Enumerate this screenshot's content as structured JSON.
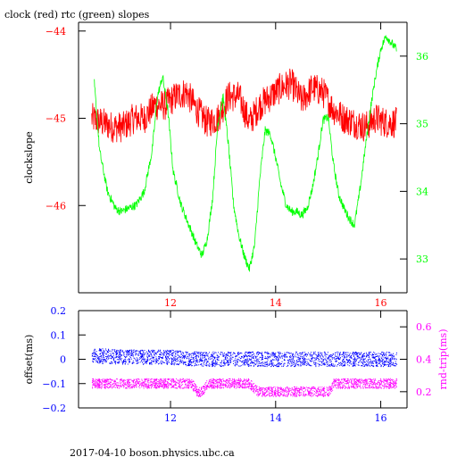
{
  "title": "clock (red) rtc (green) slopes",
  "footer": "2017-04-10  boson.physics.ubc.ca",
  "colors": {
    "clock": "#ff0000",
    "rtc": "#00ff00",
    "offset": "#0000ff",
    "rndtrip": "#ff00ff",
    "axis": "#000000",
    "background": "#ffffff"
  },
  "chart_data": [
    {
      "type": "line",
      "title": "clock (red) rtc (green) slopes",
      "ylabel": "clockslope",
      "y2label": "",
      "xlabel": "",
      "xlim": [
        10.25,
        16.5
      ],
      "ylim": [
        -47.0,
        -43.9
      ],
      "y2lim": [
        32.5,
        36.5
      ],
      "x_ticks": [
        "12",
        "14",
        "16"
      ],
      "y_ticks": [
        "-44",
        "-45",
        "-46"
      ],
      "y2_ticks": [
        "36",
        "35",
        "34",
        "33"
      ],
      "grid": false,
      "series": [
        {
          "name": "clock",
          "color": "#ff0000",
          "axis": "left",
          "x": [
            10.5,
            10.7,
            10.9,
            11.1,
            11.3,
            11.5,
            11.7,
            11.9,
            12.1,
            12.3,
            12.5,
            12.7,
            12.9,
            13.1,
            13.3,
            13.5,
            13.7,
            13.9,
            14.1,
            14.3,
            14.5,
            14.7,
            14.9,
            15.1,
            15.3,
            15.5,
            15.7,
            15.9,
            16.1,
            16.3
          ],
          "y": [
            -45.0,
            -45.05,
            -45.1,
            -45.1,
            -45.0,
            -45.0,
            -44.85,
            -44.85,
            -44.75,
            -44.7,
            -44.9,
            -45.05,
            -45.0,
            -44.75,
            -44.75,
            -45.05,
            -44.85,
            -44.75,
            -44.65,
            -44.6,
            -44.8,
            -44.65,
            -44.7,
            -44.9,
            -45.0,
            -45.05,
            -45.1,
            -45.0,
            -45.05,
            -45.05
          ],
          "noise": 0.18
        },
        {
          "name": "rtc",
          "color": "#00ff00",
          "axis": "right",
          "x": [
            10.55,
            10.65,
            10.8,
            10.95,
            11.05,
            11.2,
            11.35,
            11.5,
            11.65,
            11.75,
            11.85,
            11.95,
            12.05,
            12.2,
            12.35,
            12.5,
            12.6,
            12.7,
            12.8,
            12.9,
            13.0,
            13.1,
            13.2,
            13.3,
            13.4,
            13.5,
            13.6,
            13.7,
            13.8,
            13.9,
            14.0,
            14.1,
            14.2,
            14.3,
            14.4,
            14.5,
            14.6,
            14.7,
            14.8,
            14.9,
            15.0,
            15.1,
            15.2,
            15.3,
            15.4,
            15.5,
            15.6,
            15.7,
            15.8,
            15.9,
            16.0,
            16.1,
            16.2,
            16.3
          ],
          "y": [
            35.6,
            34.6,
            34.0,
            33.75,
            33.7,
            33.75,
            33.8,
            34.0,
            34.6,
            35.4,
            35.7,
            35.2,
            34.3,
            33.8,
            33.5,
            33.2,
            33.05,
            33.3,
            33.9,
            35.0,
            35.4,
            34.7,
            33.8,
            33.35,
            33.05,
            32.85,
            33.2,
            34.2,
            34.9,
            34.85,
            34.5,
            34.1,
            33.8,
            33.7,
            33.7,
            33.65,
            33.75,
            34.05,
            34.5,
            35.05,
            35.1,
            34.4,
            33.95,
            33.75,
            33.6,
            33.5,
            34.0,
            34.6,
            35.2,
            35.7,
            36.1,
            36.3,
            36.2,
            36.1
          ],
          "noise": 0.05
        }
      ]
    },
    {
      "type": "scatter",
      "title": "",
      "ylabel": "offset(ms)",
      "y2label": "rnd-trip(ms)",
      "xlabel": "",
      "xlim": [
        10.25,
        16.5
      ],
      "ylim": [
        -0.2,
        0.2
      ],
      "y2lim": [
        0.1,
        0.7
      ],
      "x_ticks": [
        "12",
        "14",
        "16"
      ],
      "y_ticks": [
        "0.2",
        "0.1",
        "0",
        "-0.1",
        "-0.2"
      ],
      "y2_ticks": [
        "0.6",
        "0.4",
        "0.2"
      ],
      "grid": false,
      "series": [
        {
          "name": "offset",
          "color": "#0000ff",
          "axis": "left",
          "x": [
            10.5,
            11.0,
            11.5,
            12.0,
            12.5,
            13.0,
            13.5,
            14.0,
            14.5,
            15.0,
            15.5,
            16.0,
            16.3
          ],
          "y": [
            0.015,
            0.01,
            0.008,
            0.008,
            0.0,
            0.0,
            0.0,
            0.0,
            0.0,
            0.0,
            0.0,
            0.0,
            0.0
          ],
          "spread": 0.03
        },
        {
          "name": "rnd-trip",
          "color": "#ff00ff",
          "axis": "right",
          "x": [
            10.5,
            11.0,
            11.5,
            12.0,
            12.4,
            12.5,
            12.6,
            12.7,
            13.0,
            13.5,
            13.65,
            14.0,
            14.5,
            15.0,
            15.1,
            15.5,
            16.0,
            16.3
          ],
          "y": [
            0.25,
            0.25,
            0.25,
            0.25,
            0.25,
            0.2,
            0.2,
            0.25,
            0.25,
            0.25,
            0.2,
            0.2,
            0.2,
            0.2,
            0.25,
            0.25,
            0.25,
            0.25
          ],
          "spread": 0.03
        }
      ]
    }
  ]
}
